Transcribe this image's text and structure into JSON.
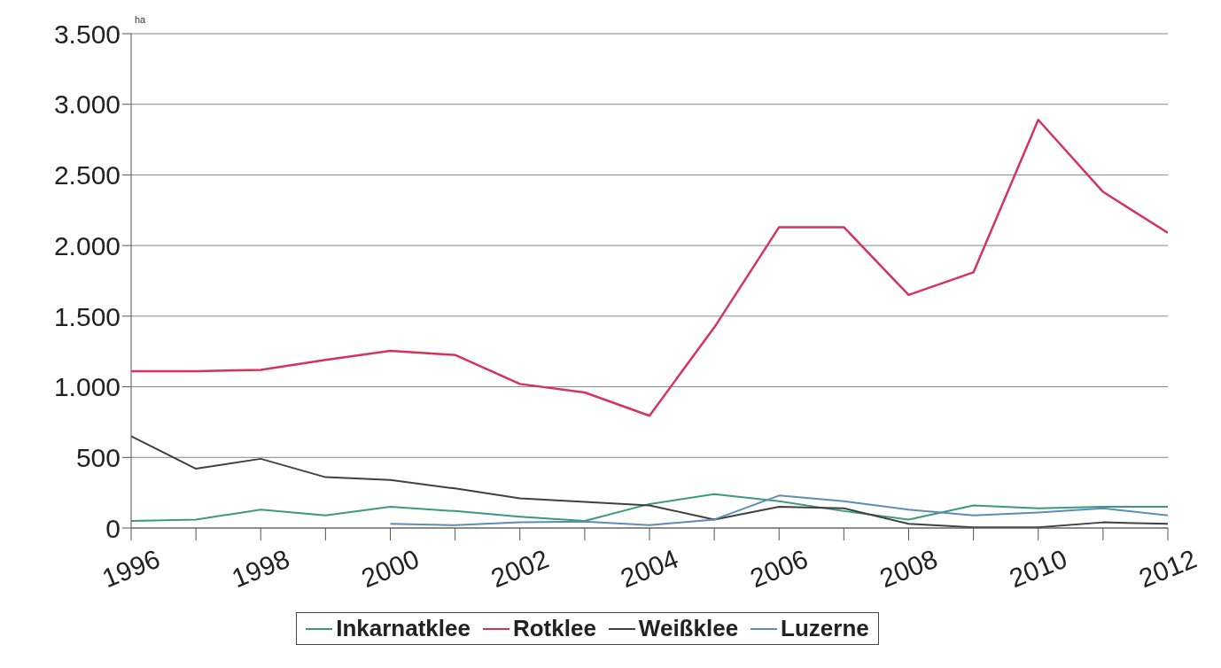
{
  "chart_data": {
    "type": "line",
    "ylabel": "ha",
    "x": [
      1996,
      1997,
      1998,
      1999,
      2000,
      2001,
      2002,
      2003,
      2004,
      2005,
      2006,
      2007,
      2008,
      2009,
      2010,
      2011,
      2012
    ],
    "series": [
      {
        "name": "Inkarnatklee",
        "color": "#3a9a7a",
        "values": [
          50,
          60,
          130,
          90,
          150,
          120,
          80,
          50,
          170,
          240,
          190,
          120,
          60,
          160,
          140,
          150,
          150
        ]
      },
      {
        "name": "Rotklee",
        "color": "#d6335a",
        "values": [
          1110,
          1110,
          1120,
          1190,
          1255,
          1225,
          1020,
          960,
          795,
          1420,
          2130,
          2130,
          1650,
          1810,
          2890,
          2380,
          2090
        ]
      },
      {
        "name": "Weißklee",
        "color": "#404040",
        "values": [
          650,
          420,
          490,
          360,
          340,
          280,
          210,
          185,
          160,
          60,
          150,
          140,
          30,
          5,
          5,
          40,
          30
        ]
      },
      {
        "name": "Luzerne",
        "color": "#5b8db8",
        "values": [
          null,
          null,
          null,
          null,
          30,
          20,
          40,
          45,
          20,
          60,
          230,
          190,
          130,
          90,
          110,
          140,
          90
        ]
      }
    ],
    "xlim": [
      1996,
      2012
    ],
    "xticks": [
      1996,
      {
        "value": 1997,
        "label": null
      },
      1998,
      {
        "value": 1999,
        "label": null
      },
      2000,
      {
        "value": 2001,
        "label": null
      },
      2002,
      {
        "value": 2003,
        "label": null
      },
      2004,
      {
        "value": 2005,
        "label": null
      },
      2006,
      {
        "value": 2007,
        "label": null
      },
      2008,
      {
        "value": 2009,
        "label": null
      },
      2010,
      {
        "value": 2011,
        "label": null
      },
      2012
    ],
    "ylim": [
      0,
      3500
    ],
    "yticks": [
      0,
      500,
      {
        "value": 1000,
        "label": "1.000"
      },
      {
        "value": 1500,
        "label": "1.500"
      },
      {
        "value": 2000,
        "label": "2.000"
      },
      {
        "value": 2500,
        "label": "2.500"
      },
      {
        "value": 3000,
        "label": "3.000"
      },
      {
        "value": 3500,
        "label": "3.500"
      }
    ],
    "grid": "y",
    "legend": "bottom"
  }
}
